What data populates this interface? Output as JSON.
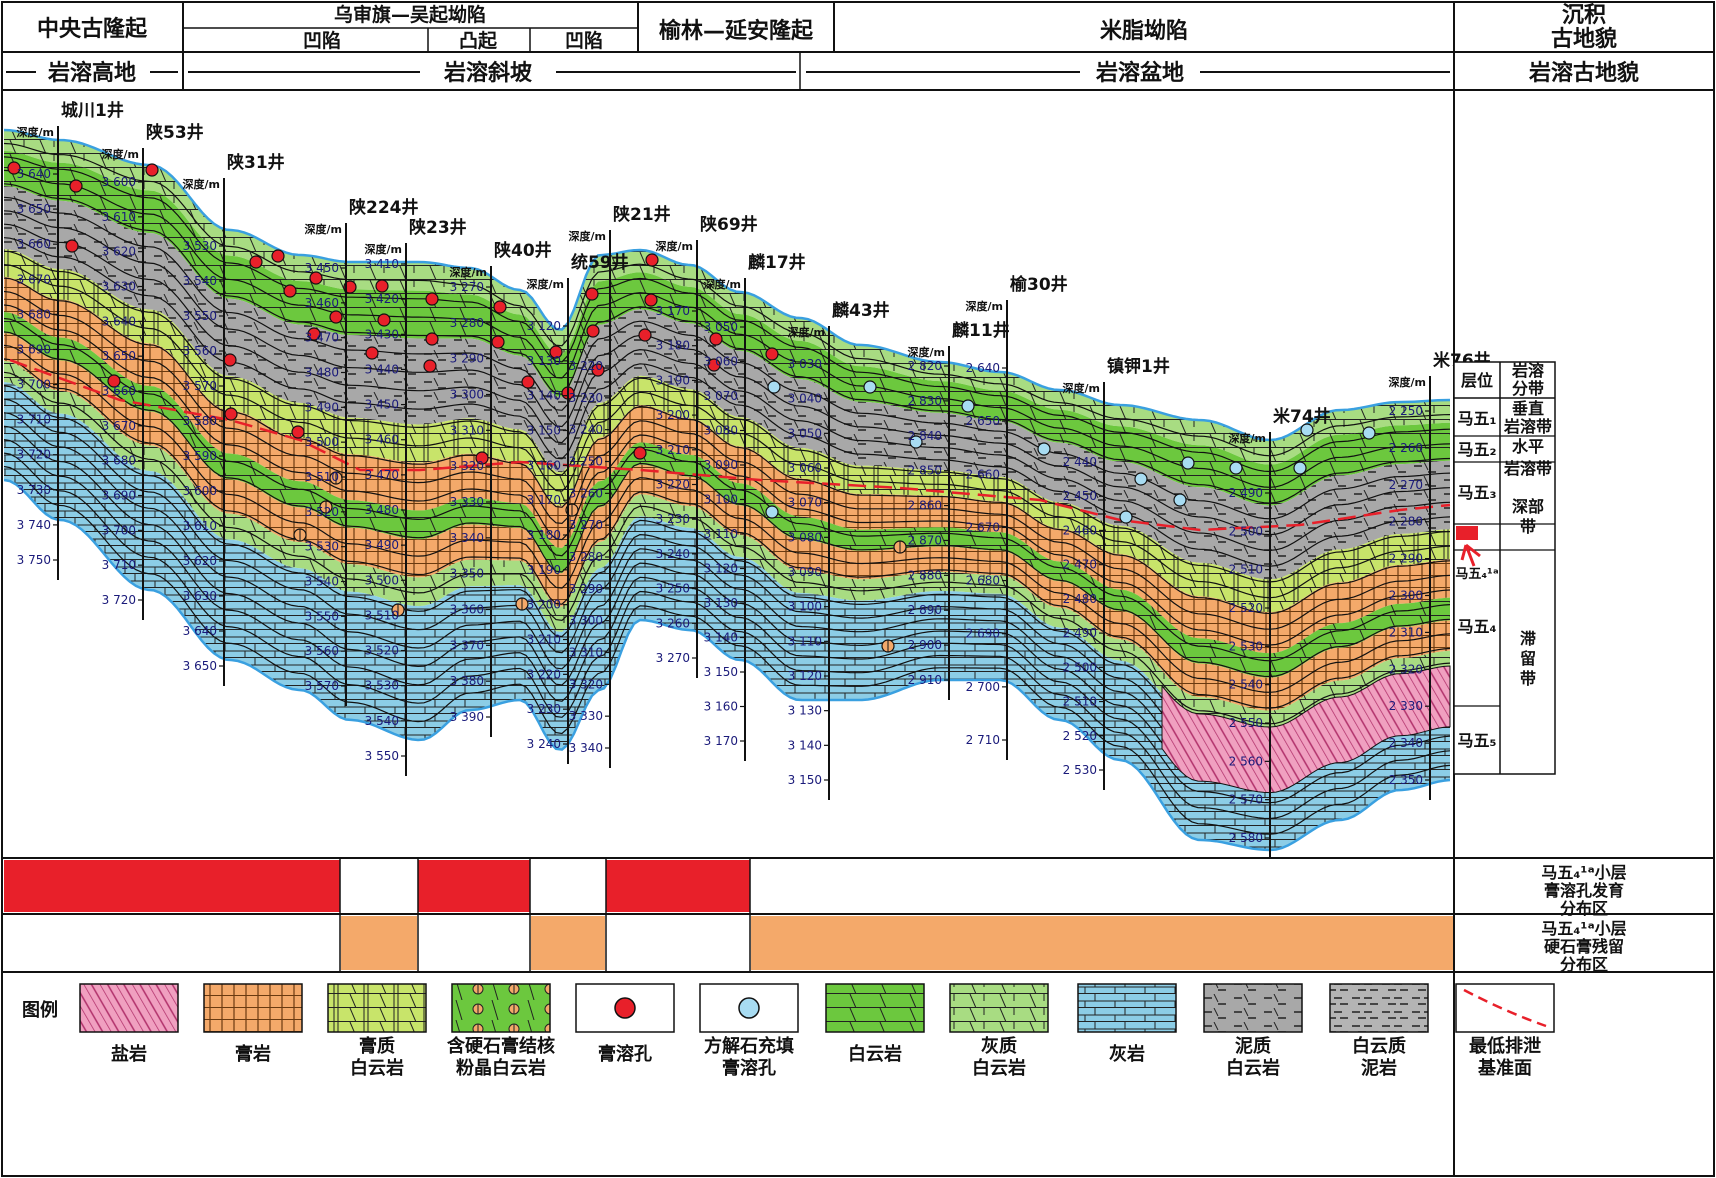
{
  "header": {
    "col1": "中央古隆起",
    "col2": "乌审旗—吴起坳陷",
    "col2_sub": [
      "凹陷",
      "凸起",
      "凹陷"
    ],
    "col3": "榆林—延安隆起",
    "col4": "米脂坳陷",
    "col5": "沉积\n古地貌",
    "row2": [
      "岩溶高地",
      "岩溶斜坡",
      "岩溶盆地"
    ],
    "row2_right": "岩溶古地貌"
  },
  "depth_label": "深度/m",
  "wells": [
    {
      "name": "城川1井",
      "ticks": [
        "3 640",
        "3 650",
        "3 660",
        "3 670",
        "3 680",
        "3 690",
        "3 700",
        "3 710",
        "3 720",
        "3 730",
        "3 740",
        "3 750"
      ]
    },
    {
      "name": "陕53井",
      "ticks": [
        "3 600",
        "3 610",
        "3 620",
        "3 630",
        "3 640",
        "3 650",
        "3 660",
        "3 670",
        "3 680",
        "3 690",
        "3 700",
        "3 710",
        "3 720"
      ]
    },
    {
      "name": "陕31井",
      "ticks": [
        "3 530",
        "3 540",
        "3 550",
        "3 560",
        "3 570",
        "3 580",
        "3 590",
        "3 600",
        "3 610",
        "3 620",
        "3 630",
        "3 640",
        "3 650"
      ]
    },
    {
      "name": "陕224井",
      "ticks": [
        "3 450",
        "3 460",
        "3 470",
        "3 480",
        "3 490",
        "3 500",
        "3 510",
        "3 520",
        "3 530",
        "3 540",
        "3 550",
        "3 560",
        "3 570"
      ]
    },
    {
      "name": "陕23井",
      "ticks": [
        "3 410",
        "3 420",
        "3 430",
        "3 440",
        "3 450",
        "3 460",
        "3 470",
        "3 480",
        "3 490",
        "3 500",
        "3 510",
        "3 520",
        "3 530",
        "3 540",
        "3 550"
      ]
    },
    {
      "name": "陕40井",
      "ticks": [
        "3 270",
        "3 280",
        "3 290",
        "3 300",
        "3 310",
        "3 320",
        "3 330",
        "3 340",
        "3 350",
        "3 360",
        "3 370",
        "3 380",
        "3 390"
      ]
    },
    {
      "name": "统59井",
      "ticks": [
        "3 120",
        "3 130",
        "3 140",
        "3 150",
        "3 160",
        "3 170",
        "3 180",
        "3 190",
        "3 200",
        "3 210",
        "3 220",
        "3 230",
        "3 240"
      ]
    },
    {
      "name": "陕21井",
      "ticks": [
        "3 220",
        "3 230",
        "3 240",
        "3 250",
        "3 260",
        "3 270",
        "3 280",
        "3 290",
        "3 300",
        "3 310",
        "3 320",
        "3 330",
        "3 340"
      ]
    },
    {
      "name": "陕69井",
      "ticks": [
        "3 170",
        "3 180",
        "3 190",
        "3 200",
        "3 210",
        "3 220",
        "3 230",
        "3 240",
        "3 250",
        "3 260",
        "3 270"
      ]
    },
    {
      "name": "麟17井",
      "ticks": [
        "3 050",
        "3 060",
        "3 070",
        "3 080",
        "3 090",
        "3 100",
        "3 110",
        "3 120",
        "3 130",
        "3 140",
        "3 150",
        "3 160",
        "3 170"
      ]
    },
    {
      "name": "麟43井",
      "ticks": [
        "3 030",
        "3 040",
        "3 050",
        "3 060",
        "3 070",
        "3 080",
        "3 090",
        "3 100",
        "3 110",
        "3 120",
        "3 130",
        "3 140",
        "3 150"
      ]
    },
    {
      "name": "麟11井",
      "ticks": [
        "2 820",
        "2 830",
        "2 840",
        "2 850",
        "2 860",
        "2 870",
        "2 880",
        "2 890",
        "2 900",
        "2 910"
      ]
    },
    {
      "name": "榆30井",
      "ticks": [
        "2 640",
        "2 650",
        "2 660",
        "2 670",
        "2 680",
        "2 690",
        "2 700",
        "2 710"
      ]
    },
    {
      "name": "镇钾1井",
      "ticks": [
        "2 440",
        "2 450",
        "2 460",
        "2 470",
        "2 480",
        "2 490",
        "2 500",
        "2 510",
        "2 520",
        "2 530"
      ]
    },
    {
      "name": "米74井",
      "ticks": [
        "2 490",
        "2 500",
        "2 510",
        "2 520",
        "2 530",
        "2 540",
        "2 550",
        "2 560",
        "2 570",
        "2 580"
      ]
    },
    {
      "name": "米76井",
      "ticks": [
        "2 250",
        "2 260",
        "2 270",
        "2 280",
        "2 290",
        "2 300",
        "2 310",
        "2 320",
        "2 330",
        "2 340",
        "2 350"
      ]
    }
  ],
  "strat_column": {
    "title1": "层位",
    "title2": "岩溶\n分带",
    "layers": [
      "马五1",
      "马五2",
      "马五3",
      "马五4 1a",
      "马五4",
      "马五5"
    ],
    "zones": [
      "垂直\n岩溶带",
      "水平\n岩溶带",
      "深部\n带",
      "滞\n留\n带"
    ]
  },
  "bands": {
    "row1_label": "马五4 1a小层\n膏溶孔发育\n分布区",
    "row2_label": "马五4 1a小层\n硬石膏残留\n分布区",
    "colors": {
      "red": "#e8202a",
      "orange": "#f4a96a"
    }
  },
  "legend": {
    "title": "图例",
    "items": [
      "盐岩",
      "膏岩",
      "膏质\n白云岩",
      "含硬石膏结核\n粉晶白云岩",
      "膏溶孔",
      "方解石充填\n膏溶孔",
      "白云岩",
      "灰质\n白云岩",
      "灰岩",
      "泥质\n白云岩",
      "白云质\n泥岩",
      "最低排泄\n基准面"
    ]
  },
  "colors": {
    "salt": "#f0a0c0",
    "gypsum": "#f4a96a",
    "gyp_dolo": "#c8e46a",
    "dolomite": "#6cc83e",
    "lime_dolo": "#a8dc82",
    "limestone": "#8ccde6",
    "marl_dolo": "#a8a8a8",
    "edge_blue": "#3aa0e0",
    "red_line": "#e8202a"
  }
}
